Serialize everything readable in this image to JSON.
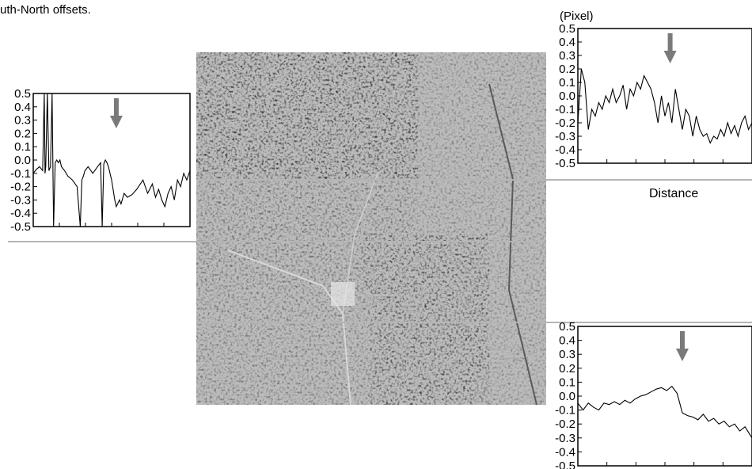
{
  "caption": "uth-North offsets.",
  "unit_label": "(Pixel)",
  "x_axis_label": "Distance",
  "chart_data": [
    {
      "type": "line",
      "panel": "left",
      "ylim": [
        -0.5,
        0.5
      ],
      "yticks": [
        "0.5",
        "0.4",
        "0.3",
        "0.2",
        "0.1",
        "0.0",
        "-0.1",
        "-0.2",
        "-0.3",
        "-0.4",
        "-0.5"
      ],
      "arrow_x": 0.53,
      "x": [
        0,
        0.02,
        0.04,
        0.06,
        0.07,
        0.075,
        0.08,
        0.09,
        0.1,
        0.11,
        0.12,
        0.13,
        0.14,
        0.15,
        0.16,
        0.17,
        0.18,
        0.2,
        0.22,
        0.25,
        0.28,
        0.3,
        0.31,
        0.32,
        0.33,
        0.35,
        0.38,
        0.41,
        0.43,
        0.44,
        0.45,
        0.46,
        0.47,
        0.48,
        0.5,
        0.52,
        0.53,
        0.55,
        0.56,
        0.58,
        0.6,
        0.63,
        0.66,
        0.7,
        0.73,
        0.76,
        0.78,
        0.8,
        0.82,
        0.84,
        0.86,
        0.88,
        0.9,
        0.92,
        0.94,
        0.96,
        0.98,
        1.0
      ],
      "y": [
        -0.1,
        -0.07,
        -0.05,
        -0.08,
        0.5,
        -0.1,
        -0.05,
        0.5,
        -0.08,
        -0.05,
        0.5,
        -0.5,
        -0.02,
        0.0,
        -0.02,
        0.0,
        -0.05,
        -0.08,
        -0.12,
        -0.15,
        -0.2,
        -0.5,
        -0.15,
        -0.12,
        -0.08,
        -0.05,
        -0.1,
        -0.05,
        -0.02,
        -0.5,
        -0.03,
        0.0,
        -0.02,
        -0.05,
        -0.15,
        -0.3,
        -0.35,
        -0.3,
        -0.33,
        -0.25,
        -0.28,
        -0.26,
        -0.22,
        -0.15,
        -0.25,
        -0.18,
        -0.28,
        -0.22,
        -0.3,
        -0.35,
        -0.25,
        -0.2,
        -0.3,
        -0.15,
        -0.2,
        -0.1,
        -0.15,
        -0.08
      ]
    },
    {
      "type": "line",
      "panel": "top-right",
      "ylim": [
        -0.5,
        0.5
      ],
      "yticks": [
        "0.5",
        "0.4",
        "0.3",
        "0.2",
        "0.1",
        "0.0",
        "-0.1",
        "-0.2",
        "-0.3",
        "-0.4",
        "-0.5"
      ],
      "arrow_x": 0.53,
      "x": [
        0,
        0.02,
        0.04,
        0.06,
        0.08,
        0.1,
        0.12,
        0.14,
        0.16,
        0.18,
        0.2,
        0.22,
        0.24,
        0.26,
        0.28,
        0.3,
        0.32,
        0.34,
        0.36,
        0.38,
        0.4,
        0.42,
        0.44,
        0.46,
        0.48,
        0.5,
        0.52,
        0.54,
        0.56,
        0.58,
        0.6,
        0.62,
        0.64,
        0.66,
        0.68,
        0.7,
        0.72,
        0.74,
        0.76,
        0.78,
        0.8,
        0.82,
        0.84,
        0.86,
        0.88,
        0.9,
        0.92,
        0.94,
        0.96,
        0.98,
        1.0
      ],
      "y": [
        -0.2,
        0.2,
        0.1,
        -0.25,
        -0.1,
        -0.15,
        -0.05,
        -0.1,
        0.0,
        -0.05,
        0.05,
        -0.05,
        0.0,
        0.08,
        -0.1,
        0.05,
        0.0,
        0.1,
        0.05,
        0.15,
        0.1,
        0.05,
        -0.05,
        -0.2,
        0.0,
        -0.15,
        -0.05,
        -0.2,
        0.05,
        -0.1,
        -0.25,
        -0.1,
        -0.15,
        -0.3,
        -0.15,
        -0.25,
        -0.3,
        -0.28,
        -0.35,
        -0.3,
        -0.32,
        -0.25,
        -0.3,
        -0.2,
        -0.28,
        -0.22,
        -0.3,
        -0.2,
        -0.15,
        -0.25,
        -0.2
      ]
    },
    {
      "type": "line",
      "panel": "bottom-right",
      "ylim": [
        -0.5,
        0.5
      ],
      "yticks": [
        "0.5",
        "0.4",
        "0.3",
        "0.2",
        "0.1",
        "0.0",
        "-0.1",
        "-0.2",
        "-0.3",
        "-0.4",
        "-0.5"
      ],
      "arrow_x": 0.6,
      "x": [
        0,
        0.03,
        0.06,
        0.09,
        0.12,
        0.15,
        0.18,
        0.21,
        0.24,
        0.27,
        0.3,
        0.33,
        0.36,
        0.39,
        0.42,
        0.45,
        0.48,
        0.51,
        0.54,
        0.57,
        0.6,
        0.63,
        0.66,
        0.69,
        0.72,
        0.75,
        0.78,
        0.81,
        0.84,
        0.87,
        0.9,
        0.93,
        0.96,
        1.0
      ],
      "y": [
        -0.05,
        -0.1,
        -0.05,
        -0.08,
        -0.1,
        -0.05,
        -0.06,
        -0.04,
        -0.06,
        -0.03,
        -0.05,
        -0.02,
        0.0,
        0.01,
        0.03,
        0.05,
        0.06,
        0.04,
        0.07,
        0.02,
        -0.12,
        -0.14,
        -0.15,
        -0.17,
        -0.13,
        -0.18,
        -0.16,
        -0.2,
        -0.18,
        -0.22,
        -0.2,
        -0.25,
        -0.22,
        -0.3
      ]
    }
  ]
}
